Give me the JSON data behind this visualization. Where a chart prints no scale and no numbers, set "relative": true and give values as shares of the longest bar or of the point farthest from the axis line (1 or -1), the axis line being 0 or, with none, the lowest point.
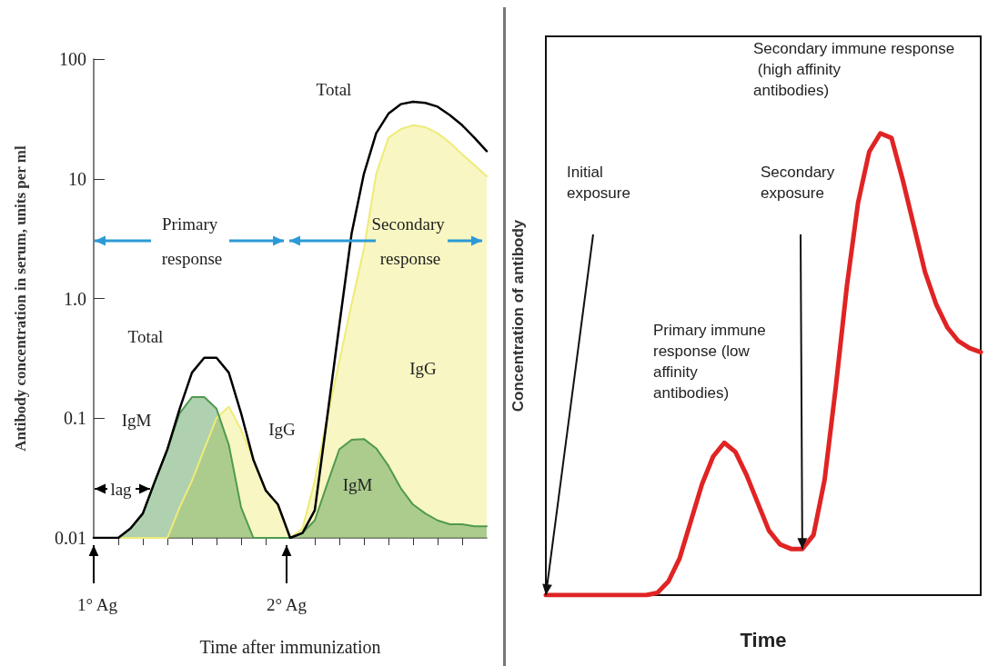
{
  "chart_data": [
    {
      "type": "area",
      "xlabel": "Time after immunization",
      "ylabel": "Antibody concentration in serum, units per ml",
      "log": "y",
      "tick_labels": "y",
      "ylim": [
        0.01,
        100
      ],
      "yticks": [
        0.01,
        0.1,
        {
          "value": 1,
          "label": "1.0"
        },
        10,
        100
      ],
      "categories": [
        null,
        null,
        null,
        null,
        null,
        null,
        null,
        null,
        null,
        null,
        null,
        null,
        null,
        null,
        null,
        null,
        null,
        null,
        null,
        null,
        null,
        null,
        null,
        null,
        null,
        null,
        null,
        null,
        null,
        null,
        null,
        null,
        null
      ],
      "series": [
        {
          "color": "#efeb78",
          "values": [
            0.01,
            0.01,
            0.01,
            0.01,
            0.01,
            0.01,
            0.01,
            0.018,
            0.03,
            0.055,
            0.1,
            0.125,
            0.08,
            0.045,
            0.025,
            0.019,
            0.01,
            0.012,
            0.03,
            0.1,
            0.3,
            0.9,
            2.6,
            11,
            22,
            26,
            28,
            27,
            24,
            20,
            16,
            13,
            10.5
          ]
        },
        {
          "color": "#4f9a4f",
          "values": [
            0.01,
            0.01,
            0.01,
            0.012,
            0.016,
            0.03,
            0.055,
            0.11,
            0.15,
            0.15,
            0.12,
            0.06,
            0.018,
            0.01,
            0.01,
            0.01,
            0.01,
            0.011,
            0.014,
            0.028,
            0.055,
            0.066,
            0.067,
            0.056,
            0.04,
            0.026,
            0.019,
            0.016,
            0.014,
            0.013,
            0.013,
            0.0125,
            0.0125
          ]
        },
        {
          "type": "line",
          "color": "#000000",
          "values": [
            0.01,
            0.01,
            0.01,
            0.012,
            0.016,
            0.03,
            0.055,
            0.12,
            0.24,
            0.32,
            0.32,
            0.24,
            0.11,
            0.045,
            0.025,
            0.019,
            0.01,
            0.011,
            0.017,
            0.1,
            0.6,
            3.5,
            11,
            24,
            35,
            42,
            44,
            43,
            40,
            34,
            28,
            22,
            17
          ]
        }
      ],
      "annotations": [
        "Total",
        "Total",
        "IgM",
        "IgG",
        "IgG",
        "IgM",
        "lag",
        "Primary response",
        "Secondary response",
        "1° Ag",
        "2° Ag"
      ]
    },
    {
      "type": "line",
      "relative": true,
      "tick_labels": false,
      "xlabel": "Time",
      "ylabel": "Concentration of antibody",
      "categories": [
        null,
        null,
        null,
        null,
        null,
        null,
        null,
        null,
        null,
        null,
        null,
        null,
        null,
        null,
        null,
        null,
        null,
        null,
        null,
        null,
        null,
        null,
        null,
        null,
        null,
        null,
        null,
        null,
        null,
        null,
        null,
        null,
        null,
        null,
        null,
        null,
        null,
        null,
        null,
        null
      ],
      "series": [
        {
          "color": "#e02424",
          "values": [
            0,
            0,
            0,
            0,
            0,
            0,
            0,
            0,
            0,
            0,
            0.005,
            0.03,
            0.08,
            0.16,
            0.24,
            0.3,
            0.33,
            0.31,
            0.26,
            0.2,
            0.14,
            0.11,
            0.1,
            0.1,
            0.13,
            0.25,
            0.45,
            0.67,
            0.85,
            0.96,
            1,
            0.99,
            0.9,
            0.8,
            0.7,
            0.63,
            0.58,
            0.55,
            0.535,
            0.526
          ]
        }
      ],
      "annotations": [
        "Initial exposure",
        "Primary immune response (low affinity antibodies)",
        "Secondary exposure",
        "Secondary immune response (high affinity antibodies)"
      ]
    }
  ]
}
